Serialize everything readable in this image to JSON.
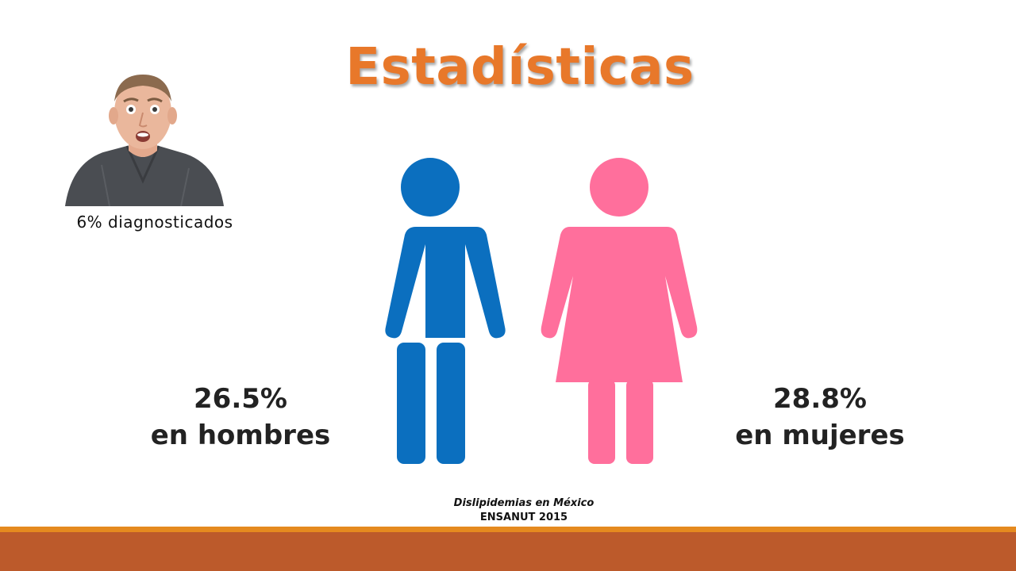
{
  "title": "Estadísticas",
  "photo": {
    "caption": "6% diagnosticados"
  },
  "stats": {
    "men": {
      "value": "26.5%",
      "label": "en hombres"
    },
    "women": {
      "value": "28.8%",
      "label": "en mujeres"
    }
  },
  "source": {
    "line1": "Dislipidemias en México",
    "line2": "ENSANUT 2015"
  },
  "colors": {
    "title": "#e8782a",
    "male_figure": "#0b6fbf",
    "female_figure": "#ff6f9c",
    "footer_bar": "#bc5a2b",
    "footer_accent": "#e58a1f"
  },
  "icons": [
    "man-figure-icon",
    "woman-figure-icon"
  ]
}
